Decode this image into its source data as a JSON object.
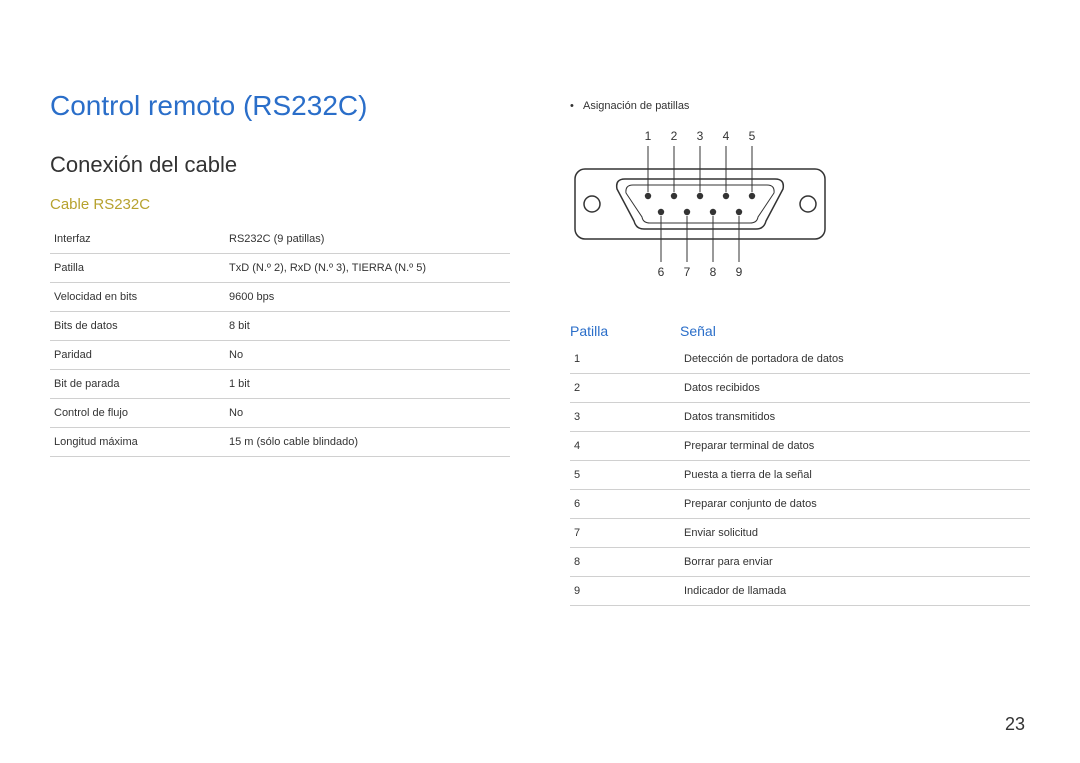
{
  "colors": {
    "title": "#2a6ec9",
    "subtitle": "#333333",
    "sectitle": "#b7a22f",
    "text": "#333333",
    "border": "#d0d0d0",
    "header_pin": "#2a6ec9",
    "bg": "#ffffff",
    "diagram_stroke": "#333333",
    "diagram_fill": "#333333"
  },
  "page_number": "23",
  "left": {
    "title": "Control remoto (RS232C)",
    "subtitle": "Conexión del cable",
    "section": "Cable RS232C",
    "specs": [
      {
        "k": "Interfaz",
        "v": "RS232C (9 patillas)"
      },
      {
        "k": "Patilla",
        "v": "TxD (N.º 2), RxD (N.º 3), TIERRA (N.º 5)"
      },
      {
        "k": "Velocidad en bits",
        "v": "9600 bps"
      },
      {
        "k": "Bits de datos",
        "v": "8 bit"
      },
      {
        "k": "Paridad",
        "v": "No"
      },
      {
        "k": "Bit de parada",
        "v": "1 bit"
      },
      {
        "k": "Control de flujo",
        "v": "No"
      },
      {
        "k": "Longitud máxima",
        "v": "15 m (sólo cable blindado)"
      }
    ]
  },
  "right": {
    "note_bullet": "•",
    "note_text": "Asignación de patillas",
    "diagram": {
      "top_numbers": [
        "1",
        "2",
        "3",
        "4",
        "5"
      ],
      "bottom_numbers": [
        "6",
        "7",
        "8",
        "9"
      ],
      "pin_radius": 3.2,
      "screw_radius": 8
    },
    "header_pin": "Patilla",
    "header_signal": "Señal",
    "signals": [
      {
        "n": "1",
        "s": "Detección de portadora de datos"
      },
      {
        "n": "2",
        "s": "Datos recibidos"
      },
      {
        "n": "3",
        "s": "Datos transmitidos"
      },
      {
        "n": "4",
        "s": "Preparar terminal de datos"
      },
      {
        "n": "5",
        "s": "Puesta a tierra de la señal"
      },
      {
        "n": "6",
        "s": "Preparar conjunto de datos"
      },
      {
        "n": "7",
        "s": "Enviar solicitud"
      },
      {
        "n": "8",
        "s": "Borrar para enviar"
      },
      {
        "n": "9",
        "s": "Indicador de llamada"
      }
    ]
  }
}
